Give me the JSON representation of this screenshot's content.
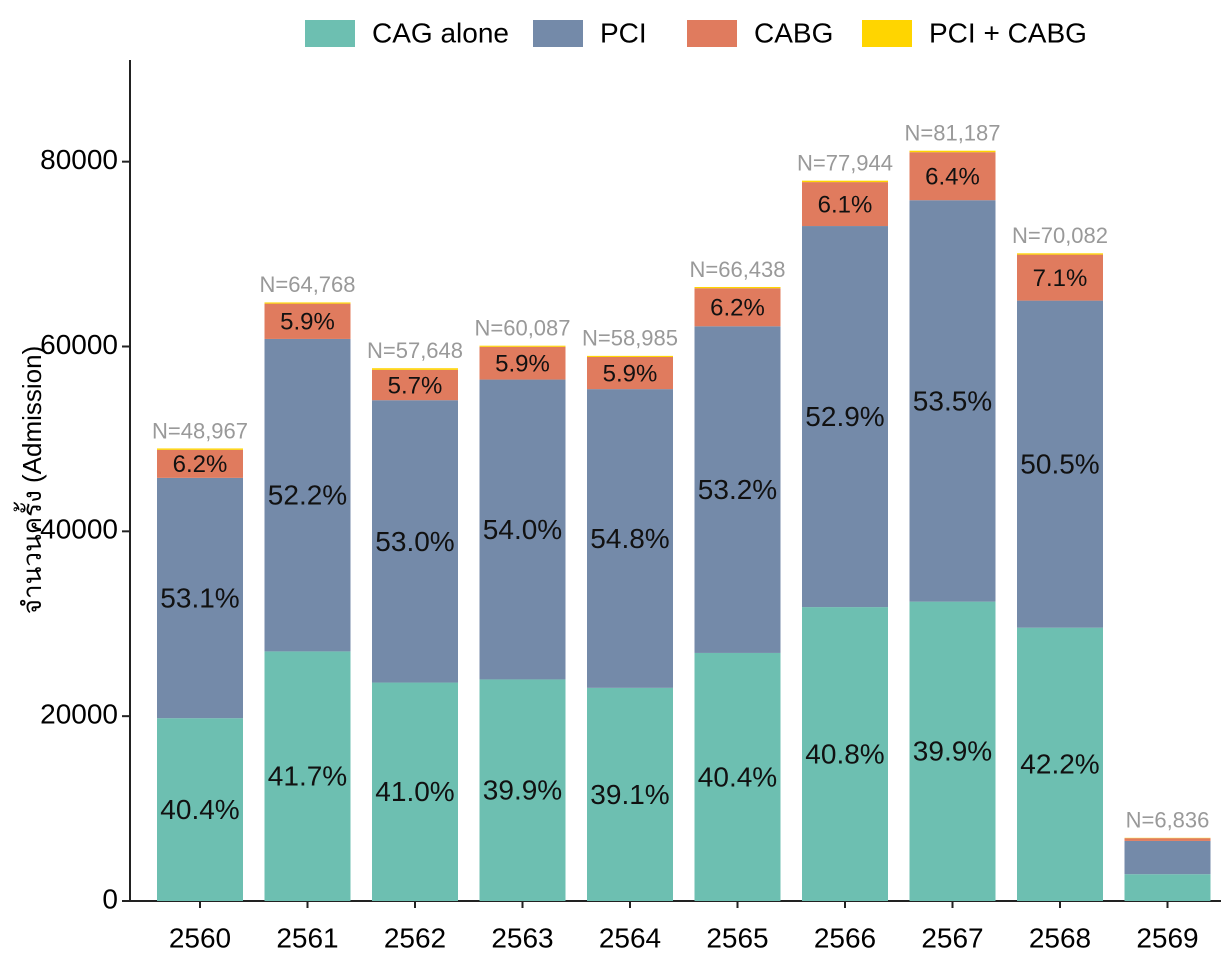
{
  "chart_data": {
    "type": "stacked_bar",
    "ylabel": "จำนวนครั้ง (Admission)",
    "categories": [
      "2560",
      "2561",
      "2562",
      "2563",
      "2564",
      "2565",
      "2566",
      "2567",
      "2568",
      "2569"
    ],
    "series": [
      {
        "name": "CAG alone",
        "color": "#6dbfb1",
        "values": [
          19783,
          27008,
          23636,
          23975,
          23063,
          26841,
          31801,
          32394,
          29575,
          2900
        ],
        "labels": [
          "40.4%",
          "41.7%",
          "41.0%",
          "39.9%",
          "39.1%",
          "40.4%",
          "40.8%",
          "39.9%",
          "42.2%",
          null
        ]
      },
      {
        "name": "PCI",
        "color": "#748aa9",
        "values": [
          26001,
          33809,
          30553,
          32447,
          32324,
          35345,
          41232,
          43435,
          35391,
          3600
        ],
        "labels": [
          "53.1%",
          "52.2%",
          "53.0%",
          "54.0%",
          "54.8%",
          "53.2%",
          "52.9%",
          "53.5%",
          "50.5%",
          null
        ]
      },
      {
        "name": "CABG",
        "color": "#e07b5e",
        "values": [
          3036,
          3821,
          3286,
          3545,
          3480,
          4119,
          4755,
          5196,
          4976,
          300
        ],
        "labels": [
          "6.2%",
          "5.9%",
          "5.7%",
          "5.9%",
          "5.9%",
          "6.2%",
          "6.1%",
          "6.4%",
          "7.1%",
          null
        ]
      },
      {
        "name": "PCI + CABG",
        "color": "#ffd500",
        "values": [
          147,
          130,
          173,
          120,
          118,
          133,
          156,
          162,
          140,
          36
        ]
      }
    ],
    "totals": [
      "N=48,967",
      "N=64,768",
      "N=57,648",
      "N=60,087",
      "N=58,985",
      "N=66,438",
      "N=77,944",
      "N=81,187",
      "N=70,082",
      "N=6,836"
    ],
    "ylim": [
      0,
      91000
    ],
    "yticks": [
      0,
      20000,
      40000,
      60000,
      80000
    ],
    "legend": "top"
  }
}
